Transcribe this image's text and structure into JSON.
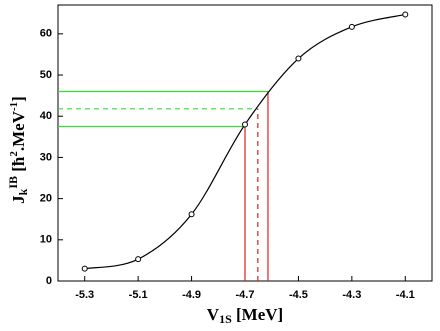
{
  "chart_data": {
    "type": "line",
    "x_label": {
      "main": "V",
      "sub": "1S",
      "rest": " [MeV]"
    },
    "y_label": {
      "main": "J",
      "sub": "k",
      "sup": "IB",
      "rest1": " [ħ",
      "sup2": "2",
      "rest2": ".MeV",
      "sup3": "-1",
      "rest3": "]"
    },
    "x": [
      -5.3,
      -5.1,
      -4.9,
      -4.7,
      -4.5,
      -4.3,
      -4.1
    ],
    "series": [
      {
        "color": "#000000",
        "values": [
          3,
          5.3,
          16.2,
          38,
          54,
          61.7,
          64.7
        ]
      }
    ],
    "xlim": [
      -5.4,
      -4.0
    ],
    "xticks": [
      -5.3,
      -5.1,
      -4.9,
      -4.7,
      -4.5,
      -4.3,
      -4.1
    ],
    "ylim": [
      0,
      67
    ],
    "yticks": [
      0,
      10,
      20,
      30,
      40,
      50,
      60
    ],
    "crossings": [
      {
        "x": -4.7,
        "y": 37.5,
        "dashed": false
      },
      {
        "x": -4.652,
        "y": 41.8,
        "dashed": true
      },
      {
        "x": -4.614,
        "y": 46,
        "dashed": false
      }
    ],
    "hline_color": "#33dd33",
    "vline_color": "#e02020"
  }
}
